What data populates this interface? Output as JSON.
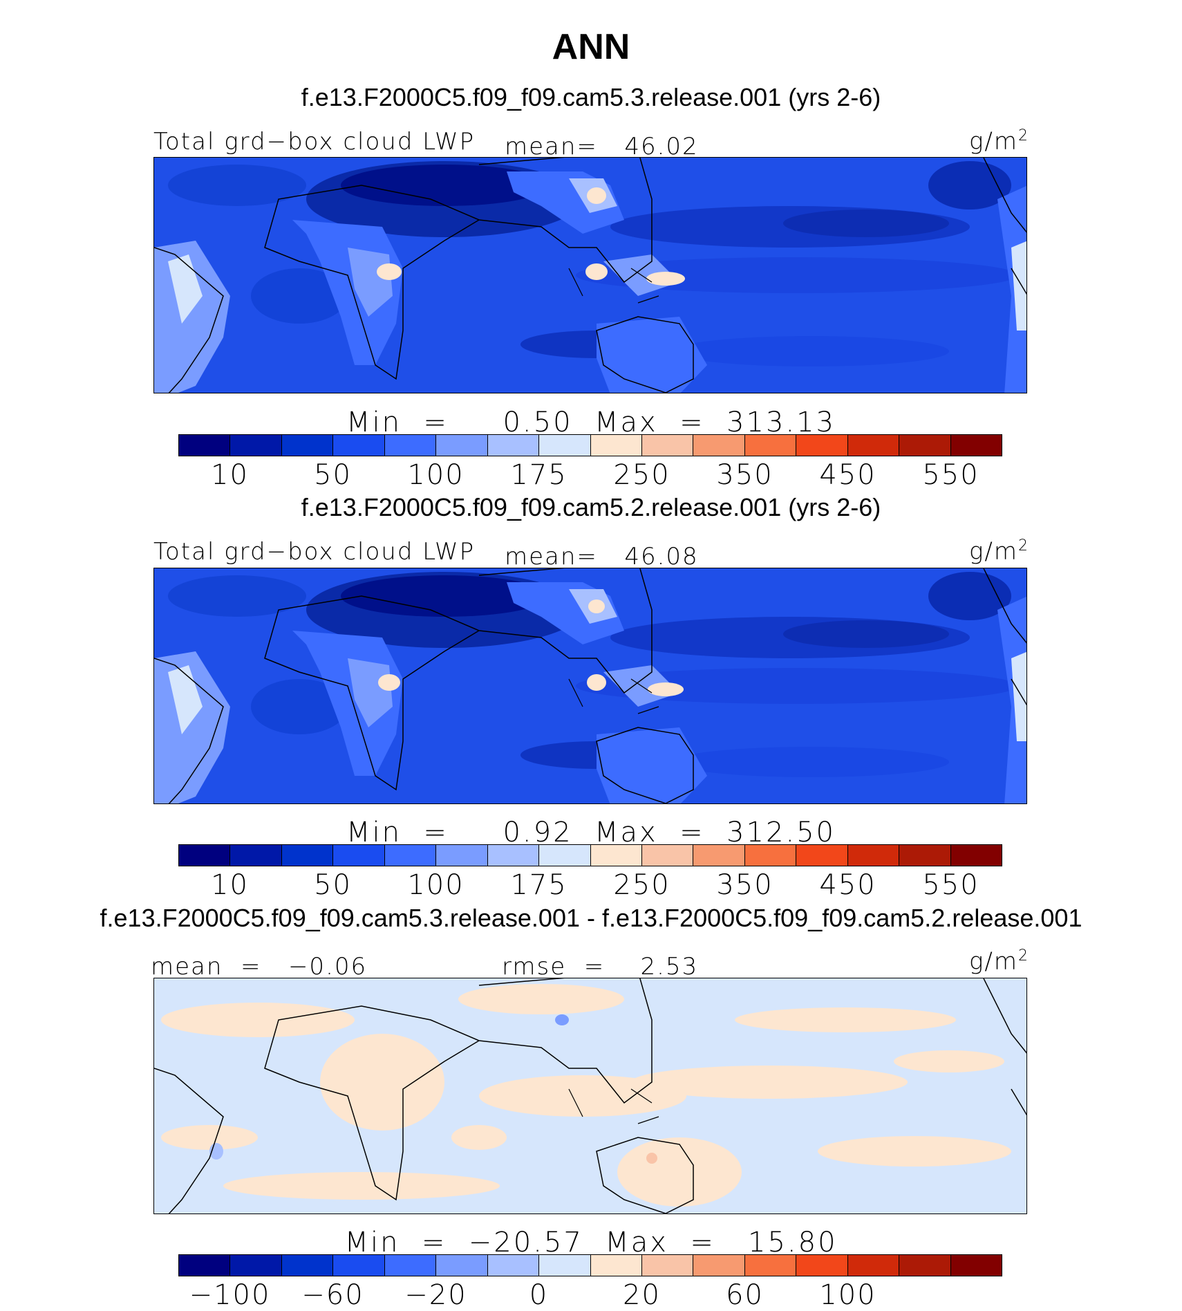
{
  "title": "ANN",
  "colorbar_colors": [
    "#00007f",
    "#0018a8",
    "#0033cc",
    "#1a4cf0",
    "#3d6cff",
    "#7a9cff",
    "#a8c0ff",
    "#d6e6fc",
    "#fde6d0",
    "#f9c4a8",
    "#f79a70",
    "#f7703e",
    "#f2471a",
    "#d02a0a",
    "#ac1a06",
    "#820000"
  ],
  "chart_data": [
    {
      "type": "heatmap",
      "title": "f.e13.F2000C5.f09_f09.cam5.3.release.001 (yrs 2-6)",
      "variable": "Total grd−box cloud LWP",
      "mean_label": "mean=   46.02",
      "units": "g/m",
      "units_sup": "2",
      "min_max_label": "Min  =     0.50  Max  =  313.13",
      "min": 0.5,
      "max": 313.13,
      "mean": 46.02,
      "colorbar_ticks": [
        "10",
        "50",
        "100",
        "175",
        "250",
        "350",
        "450",
        "550"
      ],
      "palette": "blue"
    },
    {
      "type": "heatmap",
      "title": "f.e13.F2000C5.f09_f09.cam5.2.release.001 (yrs 2-6)",
      "variable": "Total grd−box cloud LWP",
      "mean_label": "mean=   46.08",
      "units": "g/m",
      "units_sup": "2",
      "min_max_label": "Min  =     0.92  Max  =  312.50",
      "min": 0.92,
      "max": 312.5,
      "mean": 46.08,
      "colorbar_ticks": [
        "10",
        "50",
        "100",
        "175",
        "250",
        "350",
        "450",
        "550"
      ],
      "palette": "blue"
    },
    {
      "type": "heatmap",
      "title": "f.e13.F2000C5.f09_f09.cam5.3.release.001 - f.e13.F2000C5.f09_f09.cam5.2.release.001",
      "variable": "mean  =   −0.06",
      "mean_label": "rmse  =    2.53",
      "units": "g/m",
      "units_sup": "2",
      "min_max_label": "Min  =  −20.57  Max  =   15.80",
      "min": -20.57,
      "max": 15.8,
      "mean": -0.06,
      "rmse": 2.53,
      "colorbar_ticks": [
        "−100",
        "−60",
        "−20",
        "0",
        "20",
        "60",
        "100"
      ],
      "palette": "diff"
    }
  ]
}
